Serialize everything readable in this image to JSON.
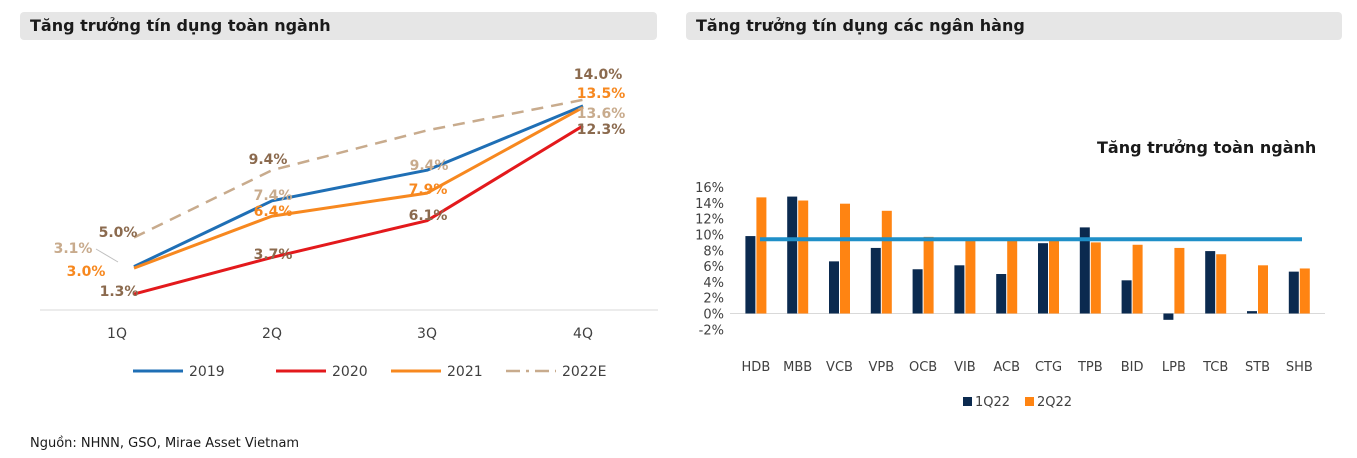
{
  "left_title": "Tăng trưởng tín dụng toàn ngành",
  "right_title": "Tăng trưởng tín dụng các ngân hàng",
  "source": "Nguồn: NHNN, GSO, Mirae Asset Vietnam",
  "chart_data": [
    {
      "type": "line",
      "title": "Tăng trưởng tín dụng toàn ngành",
      "categories": [
        "1Q",
        "2Q",
        "3Q",
        "4Q"
      ],
      "series": [
        {
          "name": "2019",
          "values": [
            3.1,
            7.4,
            9.4,
            13.6
          ],
          "labels": [
            "3.1%",
            "7.4%",
            "9.4%",
            "13.6%"
          ],
          "color": "#1f6fb5",
          "label_color": "#c8ab8d",
          "dash": "solid"
        },
        {
          "name": "2020",
          "values": [
            1.3,
            3.7,
            6.1,
            12.3
          ],
          "labels": [
            "1.3%",
            "3.7%",
            "6.1%",
            "12.3%"
          ],
          "color": "#e3191c",
          "label_color": "#8b6a4e",
          "dash": "solid"
        },
        {
          "name": "2021",
          "values": [
            3.0,
            6.4,
            7.9,
            13.5
          ],
          "labels": [
            "3.0%",
            "6.4%",
            "7.9%",
            "13.5%"
          ],
          "color": "#f7881f",
          "label_color": "#f7881f",
          "dash": "solid"
        },
        {
          "name": "2022E",
          "values": [
            5.0,
            9.4,
            12.0,
            14.0
          ],
          "labels": [
            "5.0%",
            "9.4%",
            "",
            "14.0%"
          ],
          "color": "#c8ab8d",
          "label_color": "#8b6a4e",
          "dash": "dash"
        }
      ],
      "ylim": [
        0,
        15
      ],
      "grid": false,
      "legend_position": "bottom"
    },
    {
      "type": "bar",
      "title": "Tăng trưởng tín dụng các ngân hàng",
      "categories": [
        "HDB",
        "MBB",
        "VCB",
        "VPB",
        "OCB",
        "VIB",
        "ACB",
        "CTG",
        "TPB",
        "BID",
        "LPB",
        "TCB",
        "STB",
        "SHB"
      ],
      "series": [
        {
          "name": "1Q22",
          "values": [
            9.8,
            14.8,
            6.6,
            8.3,
            5.6,
            6.1,
            5.0,
            8.9,
            10.9,
            4.2,
            -0.8,
            7.9,
            0.3,
            5.3
          ],
          "color": "#0b2a4f"
        },
        {
          "name": "2Q22",
          "values": [
            14.7,
            14.3,
            13.9,
            13.0,
            9.7,
            9.6,
            9.5,
            9.4,
            9.0,
            8.7,
            8.3,
            7.5,
            6.1,
            5.7
          ],
          "color": "#ff8412"
        }
      ],
      "reference_line": {
        "label": "Tăng trưởng toàn ngành",
        "value": 9.4,
        "color": "#1f8fc8"
      },
      "ylim": [
        -2,
        16
      ],
      "yticks": [
        "-2%",
        "0%",
        "2%",
        "4%",
        "6%",
        "8%",
        "10%",
        "12%",
        "14%",
        "16%"
      ],
      "grid": false,
      "legend_position": "bottom"
    }
  ]
}
